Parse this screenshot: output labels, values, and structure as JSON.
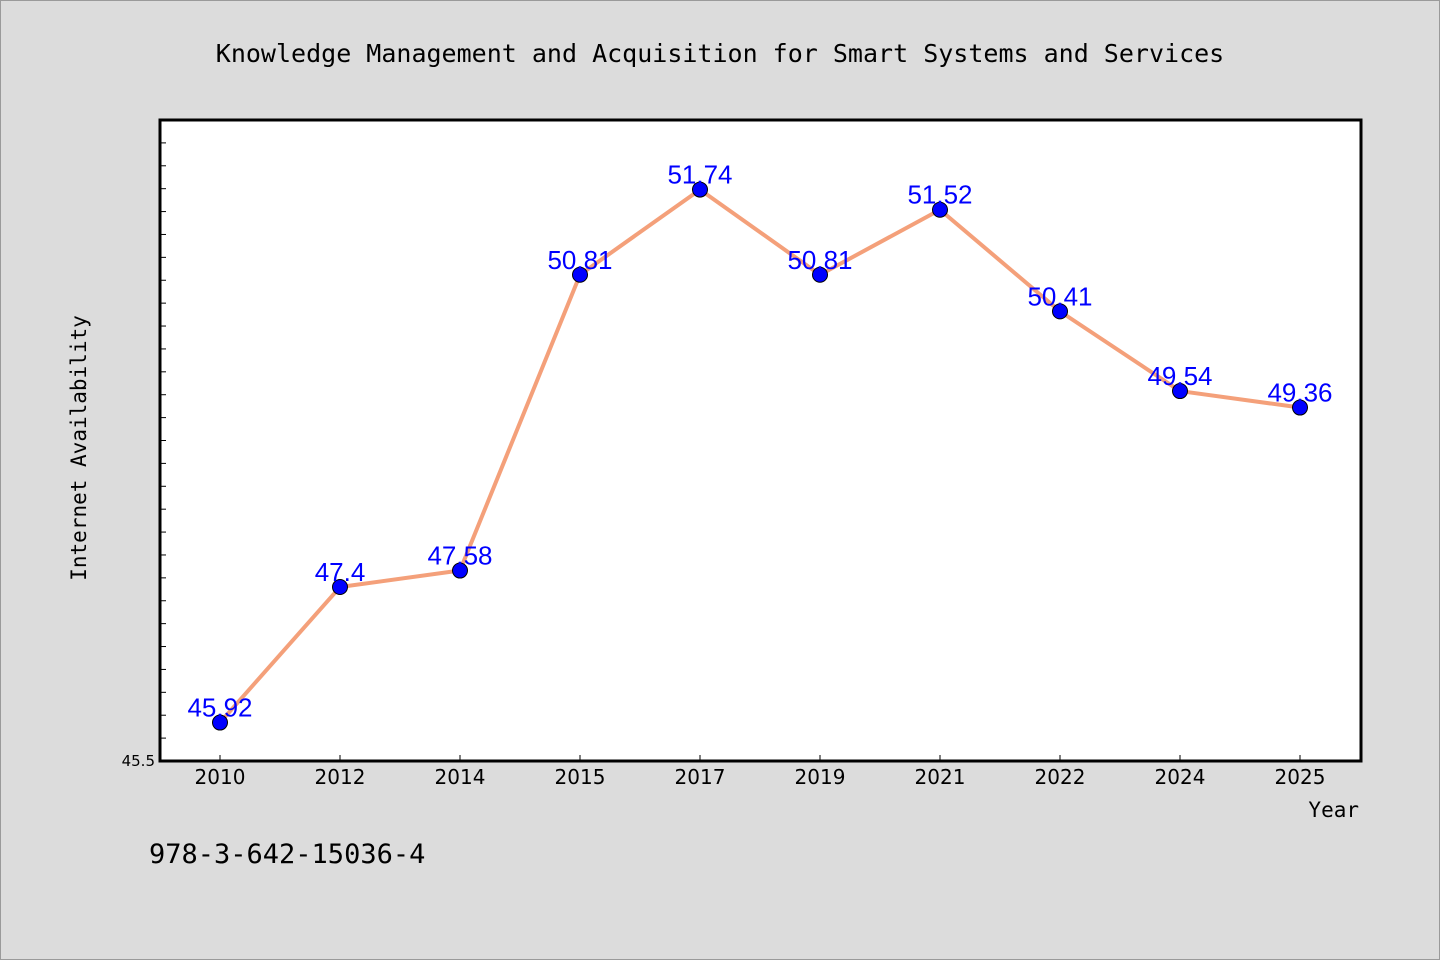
{
  "chart_data": {
    "type": "line",
    "title": "Knowledge Management and Acquisition for Smart Systems and Services",
    "xlabel": "Year",
    "ylabel": "Internet Availability",
    "categories": [
      "2010",
      "2012",
      "2014",
      "2015",
      "2017",
      "2019",
      "2021",
      "2022",
      "2024",
      "2025"
    ],
    "series": [
      {
        "values": [
          45.92,
          47.4,
          47.58,
          50.81,
          51.74,
          50.81,
          51.52,
          50.41,
          49.54,
          49.36
        ],
        "labels": [
          "45.92",
          "47.4",
          "47.58",
          "50.81",
          "51.74",
          "50.81",
          "51.52",
          "50.41",
          "49.54",
          "49.36"
        ],
        "line_color": "#f4a07a",
        "marker_color": "#0000ff"
      }
    ],
    "ylim": [
      45.5,
      52.5
    ],
    "y_tick_labels": [
      "45.5"
    ],
    "grid": false,
    "label_color": "#0000ff"
  },
  "footnote": "978-3-642-15036-4"
}
